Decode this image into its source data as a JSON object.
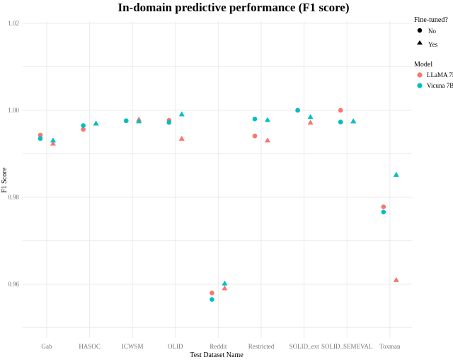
{
  "chart_data": {
    "type": "scatter",
    "title": "In-domain predictive performance (F1 score)",
    "xlabel": "Test Dataset Name",
    "ylabel": "F1 Score",
    "categories": [
      "Gab",
      "HASOC",
      "ICWSM",
      "OLID",
      "Reddit",
      "Restricted",
      "SOLID_ext",
      "SOLID_SEMEVAL",
      "Toxman"
    ],
    "yticks": [
      0.96,
      0.98,
      1.0,
      1.02
    ],
    "ytick_labels": [
      "0.96",
      "0.98",
      "1.00",
      "1.02"
    ],
    "ylim": [
      0.9465,
      1.0235
    ],
    "grid": true,
    "legend": {
      "placement": "right",
      "shape_title": "Fine-tuned?",
      "shape_entries": [
        {
          "label": "No",
          "shape": "circle"
        },
        {
          "label": "Yes",
          "shape": "triangle"
        }
      ],
      "color_title": "Model",
      "color_entries": [
        {
          "label": "LLaMA 7B",
          "color": "#F8766D"
        },
        {
          "label": "Vicuna 7B",
          "color": "#00BFC4"
        }
      ]
    },
    "series": [
      {
        "name": "LLaMA 7B",
        "fine_tuned": "No",
        "color": "#F8766D",
        "shape": "circle",
        "values": [
          0.9943,
          0.9956,
          0.9976,
          0.9977,
          0.958,
          0.9941,
          1.0,
          1.0,
          0.9778
        ]
      },
      {
        "name": "Vicuna 7B",
        "fine_tuned": "No",
        "color": "#00BFC4",
        "shape": "circle",
        "values": [
          0.9935,
          0.9965,
          0.9976,
          0.9972,
          0.9565,
          0.998,
          1.0,
          0.9973,
          0.9766
        ]
      },
      {
        "name": "LLaMA 7B",
        "fine_tuned": "Yes",
        "color": "#F8766D",
        "shape": "triangle",
        "values": [
          0.9924,
          0.997,
          0.9979,
          0.9935,
          0.9591,
          0.9931,
          0.9972,
          0.9975,
          0.961
        ]
      },
      {
        "name": "Vicuna 7B",
        "fine_tuned": "Yes",
        "color": "#00BFC4",
        "shape": "triangle",
        "values": [
          0.9931,
          0.997,
          0.9975,
          0.9991,
          0.9602,
          0.9978,
          0.9985,
          0.9975,
          0.9852
        ]
      }
    ]
  }
}
